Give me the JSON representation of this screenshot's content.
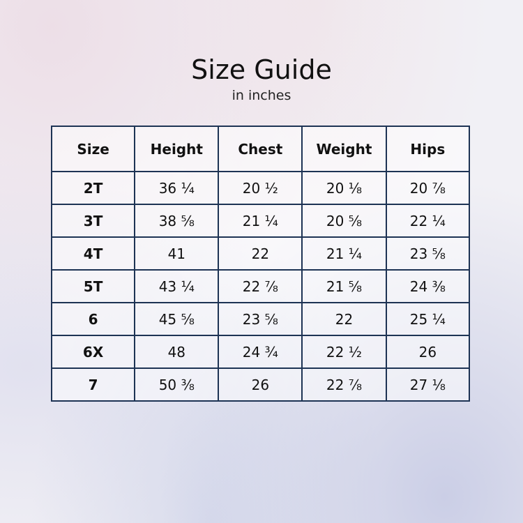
{
  "title": "Size Guide",
  "subtitle": "in inches",
  "table": {
    "headers": [
      "Size",
      "Height",
      "Chest",
      "Weight",
      "Hips"
    ],
    "rows": [
      [
        "2T",
        "36 ¼",
        "20 ½",
        "20 ⅛",
        "20 ⅞"
      ],
      [
        "3T",
        "38 ⅝",
        "21 ¼",
        "20 ⅝",
        "22 ¼"
      ],
      [
        "4T",
        "41",
        "22",
        "21 ¼",
        "23 ⅝"
      ],
      [
        "5T",
        "43 ¼",
        "22 ⅞",
        "21 ⅝",
        "24 ⅜"
      ],
      [
        "6",
        "45 ⅝",
        "23 ⅝",
        "22",
        "25 ¼"
      ],
      [
        "6X",
        "48",
        "24 ¾",
        "22 ½",
        "26"
      ],
      [
        "7",
        "50 ⅜",
        "26",
        "22 ⅞",
        "27 ⅛"
      ]
    ]
  },
  "colors": {
    "border": "#1d3354"
  }
}
